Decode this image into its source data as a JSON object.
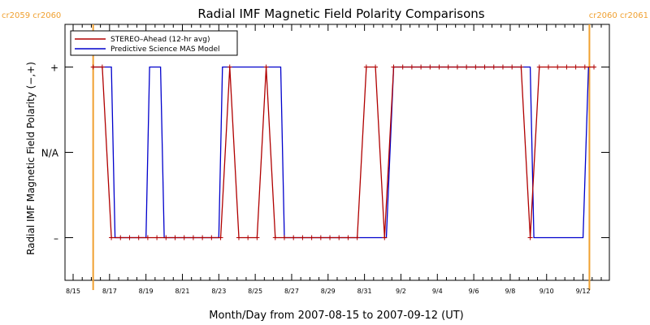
{
  "chart_data": {
    "type": "line",
    "title": "Radial IMF Magnetic Field Polarity Comparisons",
    "xlabel": "Month/Day from 2007-08-15 to 2007-09-12 (UT)",
    "ylabel": "Radial IMF Magnetic Field Polarity (−,+)",
    "x_unit": "days after 2007-08-15",
    "xlim": [
      0,
      29
    ],
    "ylim": [
      -1.5,
      1.5
    ],
    "x_ticks": [
      {
        "x": 0,
        "label": "8/15"
      },
      {
        "x": 2,
        "label": "8/17"
      },
      {
        "x": 4,
        "label": "8/19"
      },
      {
        "x": 6,
        "label": "8/21"
      },
      {
        "x": 8,
        "label": "8/23"
      },
      {
        "x": 10,
        "label": "8/25"
      },
      {
        "x": 12,
        "label": "8/27"
      },
      {
        "x": 14,
        "label": "8/29"
      },
      {
        "x": 16,
        "label": "8/31"
      },
      {
        "x": 18,
        "label": "9/2"
      },
      {
        "x": 20,
        "label": "9/4"
      },
      {
        "x": 22,
        "label": "9/6"
      },
      {
        "x": 24,
        "label": "9/8"
      },
      {
        "x": 26,
        "label": "9/10"
      },
      {
        "x": 28,
        "label": "9/12"
      }
    ],
    "y_ticks": [
      {
        "y": 1,
        "label": "+"
      },
      {
        "y": 0,
        "label": "N/A"
      },
      {
        "y": -1,
        "label": "–"
      }
    ],
    "vlines": [
      {
        "x": 1.1,
        "label": "cr2059 cr2060",
        "color": "#f0a030",
        "label_side": "left"
      },
      {
        "x": 28.35,
        "label": "cr2060 cr2061",
        "color": "#f0a030",
        "label_side": "right"
      }
    ],
    "legend": {
      "position": "top-left"
    },
    "series": [
      {
        "name": "STEREO–Ahead (12-hr avg)",
        "color": "#b00000",
        "markers": true,
        "points": [
          [
            1.1,
            1
          ],
          [
            1.6,
            1
          ],
          [
            2.1,
            -1
          ],
          [
            2.6,
            -1
          ],
          [
            3.1,
            -1
          ],
          [
            3.6,
            -1
          ],
          [
            4.1,
            -1
          ],
          [
            4.6,
            -1
          ],
          [
            5.1,
            -1
          ],
          [
            5.6,
            -1
          ],
          [
            6.1,
            -1
          ],
          [
            6.6,
            -1
          ],
          [
            7.1,
            -1
          ],
          [
            7.6,
            -1
          ],
          [
            8.1,
            -1
          ],
          [
            8.6,
            1
          ],
          [
            9.1,
            -1
          ],
          [
            9.6,
            -1
          ],
          [
            10.1,
            -1
          ],
          [
            10.6,
            1
          ],
          [
            11.1,
            -1
          ],
          [
            11.6,
            -1
          ],
          [
            12.1,
            -1
          ],
          [
            12.6,
            -1
          ],
          [
            13.1,
            -1
          ],
          [
            13.6,
            -1
          ],
          [
            14.1,
            -1
          ],
          [
            14.6,
            -1
          ],
          [
            15.1,
            -1
          ],
          [
            15.6,
            -1
          ],
          [
            16.1,
            1
          ],
          [
            16.6,
            1
          ],
          [
            17.1,
            -1
          ],
          [
            17.6,
            1
          ],
          [
            18.1,
            1
          ],
          [
            18.6,
            1
          ],
          [
            19.1,
            1
          ],
          [
            19.6,
            1
          ],
          [
            20.1,
            1
          ],
          [
            20.6,
            1
          ],
          [
            21.1,
            1
          ],
          [
            21.6,
            1
          ],
          [
            22.1,
            1
          ],
          [
            22.6,
            1
          ],
          [
            23.1,
            1
          ],
          [
            23.6,
            1
          ],
          [
            24.1,
            1
          ],
          [
            24.6,
            1
          ],
          [
            25.1,
            -1
          ],
          [
            25.6,
            1
          ],
          [
            26.1,
            1
          ],
          [
            26.6,
            1
          ],
          [
            27.1,
            1
          ],
          [
            27.6,
            1
          ],
          [
            28.1,
            1
          ],
          [
            28.6,
            1
          ]
        ]
      },
      {
        "name": "Predictive Science MAS Model",
        "color": "#0000cc",
        "markers": false,
        "points": [
          [
            1.1,
            1
          ],
          [
            2.1,
            1
          ],
          [
            2.3,
            -1
          ],
          [
            4.0,
            -1
          ],
          [
            4.2,
            1
          ],
          [
            4.8,
            1
          ],
          [
            5.0,
            -1
          ],
          [
            8.0,
            -1
          ],
          [
            8.2,
            1
          ],
          [
            11.4,
            1
          ],
          [
            11.6,
            -1
          ],
          [
            17.2,
            -1
          ],
          [
            17.6,
            1
          ],
          [
            25.1,
            1
          ],
          [
            25.3,
            -1
          ],
          [
            28.0,
            -1
          ],
          [
            28.3,
            1
          ]
        ]
      }
    ]
  }
}
